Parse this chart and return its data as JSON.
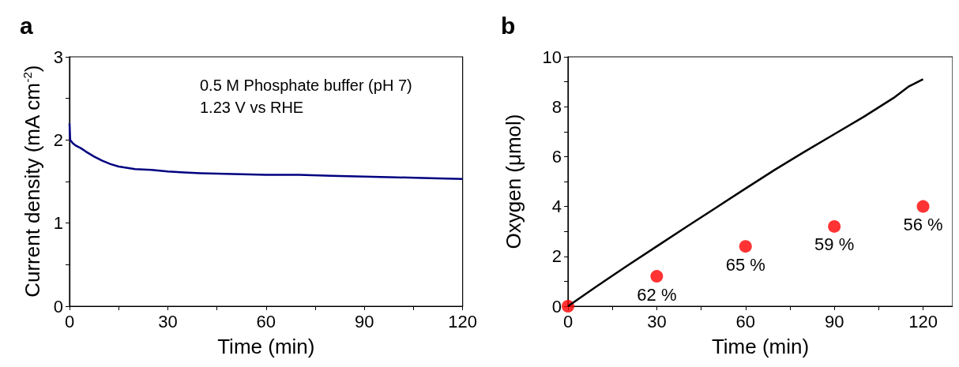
{
  "chart_data": [
    {
      "type": "line",
      "title": "a",
      "xlabel": "Time (min)",
      "ylabel": "Current density (mA cm$^{-2}$)",
      "annotations": [
        "0.5 M Phosphate buffer (pH 7)",
        "1.23 V vs RHE"
      ],
      "xlim": [
        0,
        120
      ],
      "xticks": [
        0,
        {
          "value": 15,
          "label": null
        },
        30,
        {
          "value": 45,
          "label": null
        },
        60,
        {
          "value": 75,
          "label": null
        },
        90,
        {
          "value": 105,
          "label": null
        },
        120
      ],
      "ylim": [
        0,
        3
      ],
      "yticks": [
        0,
        {
          "value": 0.5,
          "label": null
        },
        1,
        {
          "value": 1.5,
          "label": null
        },
        2,
        {
          "value": 2.5,
          "label": null
        },
        3
      ],
      "series": [
        {
          "color": "#000080",
          "x": [
            0,
            0.2,
            1,
            2,
            3.5,
            5,
            7.5,
            10,
            12.5,
            15,
            20,
            25,
            30,
            35,
            40,
            50,
            60,
            70,
            80,
            90,
            100,
            110,
            120
          ],
          "values": [
            2.2,
            2.0,
            1.96,
            1.93,
            1.9,
            1.86,
            1.8,
            1.75,
            1.71,
            1.68,
            1.65,
            1.64,
            1.62,
            1.61,
            1.6,
            1.59,
            1.58,
            1.58,
            1.57,
            1.56,
            1.55,
            1.54,
            1.53
          ]
        }
      ]
    },
    {
      "type": "line",
      "title": "b",
      "xlabel": "Time (min)",
      "ylabel": "Oxygen (μmol)",
      "annotations": [
        {
          "text": "62 %",
          "x": 30,
          "y": 1.2
        },
        {
          "text": "65 %",
          "x": 60,
          "y": 2.4
        },
        {
          "text": "59 %",
          "x": 90,
          "y": 3.2
        },
        {
          "text": "56 %",
          "x": 120,
          "y": 4.0
        }
      ],
      "xlim": [
        0,
        130
      ],
      "xticks": [
        0,
        {
          "value": 15,
          "label": null
        },
        30,
        {
          "value": 45,
          "label": null
        },
        60,
        {
          "value": 75,
          "label": null
        },
        90,
        {
          "value": 105,
          "label": null
        },
        120
      ],
      "ylim": [
        0,
        10
      ],
      "yticks": [
        0,
        {
          "value": 1,
          "label": null
        },
        2,
        {
          "value": 3,
          "label": null
        },
        4,
        {
          "value": 5,
          "label": null
        },
        6,
        {
          "value": 7,
          "label": null
        },
        8,
        {
          "value": 9,
          "label": null
        },
        10
      ],
      "series": [
        {
          "color": "#000000",
          "x": [
            0,
            10,
            20,
            30,
            40,
            50,
            60,
            70,
            80,
            90,
            100,
            110,
            115,
            120
          ],
          "values": [
            0,
            0.82,
            1.62,
            2.4,
            3.18,
            3.95,
            4.72,
            5.48,
            6.2,
            6.9,
            7.6,
            8.35,
            8.8,
            9.1
          ]
        },
        {
          "type": "scatter",
          "color": "#ff0000",
          "marker": "circle",
          "x": [
            0,
            30,
            60,
            90,
            120
          ],
          "values": [
            0,
            1.2,
            2.4,
            3.2,
            4.0
          ]
        }
      ]
    }
  ]
}
